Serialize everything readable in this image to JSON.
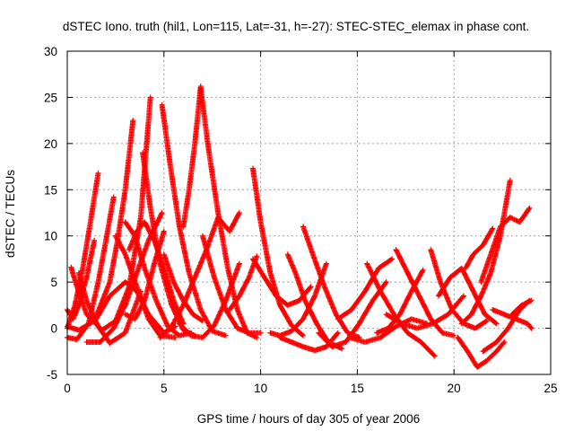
{
  "chart_data": {
    "type": "scatter",
    "title": "dSTEC Iono. truth (hil1, Lon=115, Lat=-31, h=-27): STEC-STEC_elemax in phase cont.",
    "xlabel": "GPS time / hours of day 305 of year 2006",
    "ylabel": "dSTEC  / TECUs",
    "xlim": [
      0,
      25
    ],
    "ylim": [
      -5,
      30
    ],
    "xticks": [
      0,
      5,
      10,
      15,
      20,
      25
    ],
    "yticks": [
      -5,
      0,
      5,
      10,
      15,
      20,
      25,
      30
    ],
    "grid": true,
    "marker": "+",
    "color": "#ff0000",
    "series": [
      {
        "x": [
          0.0,
          0.4,
          0.8,
          1.2,
          1.6
        ],
        "y": [
          0.0,
          2.5,
          6.5,
          11.5,
          16.8
        ]
      },
      {
        "x": [
          0.0,
          0.6,
          1.4,
          2.2,
          2.6,
          3.0,
          3.4
        ],
        "y": [
          0.2,
          -0.2,
          0.8,
          5.0,
          9.5,
          15.0,
          22.5
        ]
      },
      {
        "x": [
          0.0,
          0.5,
          1.1,
          1.6,
          2.0,
          2.4
        ],
        "y": [
          -1.0,
          -1.2,
          0.5,
          5.0,
          9.5,
          14.2
        ]
      },
      {
        "x": [
          0.0,
          0.3,
          0.6,
          1.0,
          1.4
        ],
        "y": [
          2.0,
          1.0,
          2.5,
          5.5,
          9.5
        ]
      },
      {
        "x": [
          0.2,
          0.5,
          1.0,
          1.8,
          2.5,
          3.2,
          3.8,
          4.3
        ],
        "y": [
          6.6,
          4.5,
          1.5,
          -0.2,
          0.8,
          4.5,
          12.0,
          25.0
        ]
      },
      {
        "x": [
          0.6,
          1.0,
          1.6,
          2.2,
          3.0,
          3.8
        ],
        "y": [
          6.0,
          3.0,
          0.2,
          -1.6,
          -0.5,
          4.0
        ]
      },
      {
        "x": [
          1.0,
          1.7,
          2.4,
          3.0,
          3.6,
          4.2,
          4.9
        ],
        "y": [
          -1.5,
          -1.5,
          0.0,
          2.5,
          6.0,
          9.5,
          12.5
        ]
      },
      {
        "x": [
          1.5,
          2.2,
          3.0,
          3.6,
          4.2,
          5.0,
          5.6
        ],
        "y": [
          1.0,
          3.5,
          5.0,
          4.0,
          1.5,
          -0.5,
          0.2
        ]
      },
      {
        "x": [
          2.5,
          3.0,
          3.6,
          4.2,
          4.8,
          5.6
        ],
        "y": [
          10.0,
          8.0,
          4.5,
          1.0,
          -0.8,
          -1.0
        ]
      },
      {
        "x": [
          3.0,
          3.5,
          4.0,
          4.6,
          5.2,
          5.8,
          6.4
        ],
        "y": [
          11.5,
          10.0,
          6.5,
          3.0,
          0.2,
          -0.8,
          -0.5
        ]
      },
      {
        "x": [
          3.2,
          3.6,
          4.0,
          4.5,
          5.0,
          5.5,
          6.0
        ],
        "y": [
          8.5,
          10.5,
          11.5,
          9.5,
          6.5,
          3.0,
          0.5
        ]
      },
      {
        "x": [
          3.9,
          4.3,
          4.8,
          5.4,
          6.0,
          6.6
        ],
        "y": [
          19.0,
          13.0,
          7.0,
          2.5,
          -0.2,
          -0.8
        ]
      },
      {
        "x": [
          3.0,
          3.5,
          4.0,
          4.5,
          5.0
        ],
        "y": [
          1.5,
          1.0,
          3.0,
          7.0,
          10.5
        ]
      },
      {
        "x": [
          4.9,
          5.3,
          5.8,
          6.3,
          6.9,
          7.5,
          8.2
        ],
        "y": [
          24.2,
          18.0,
          11.0,
          6.0,
          2.0,
          -0.3,
          -0.8
        ]
      },
      {
        "x": [
          5.0,
          5.5,
          6.0,
          6.5,
          7.0
        ],
        "y": [
          8.0,
          5.0,
          3.0,
          1.5,
          0.8
        ]
      },
      {
        "x": [
          6.0,
          6.3,
          6.6,
          6.9
        ],
        "y": [
          11.0,
          15.0,
          20.0,
          26.2
        ]
      },
      {
        "x": [
          6.9,
          7.3,
          7.8,
          8.3,
          8.8,
          9.3,
          9.8
        ],
        "y": [
          26.0,
          19.5,
          12.5,
          6.5,
          2.0,
          -0.5,
          -1.0
        ]
      },
      {
        "x": [
          4.8,
          5.4,
          6.0,
          6.6,
          7.2,
          7.8,
          8.4,
          8.9
        ],
        "y": [
          -1.0,
          0.2,
          2.5,
          5.5,
          8.5,
          12.0,
          10.5,
          12.5
        ]
      },
      {
        "x": [
          5.8,
          6.4,
          7.0,
          7.6,
          8.2,
          8.9
        ],
        "y": [
          0.5,
          -0.8,
          -1.0,
          0.3,
          3.0,
          7.0
        ]
      },
      {
        "x": [
          7.0,
          7.6,
          8.2,
          8.8,
          9.4,
          10.0
        ],
        "y": [
          10.0,
          5.5,
          2.0,
          0.0,
          -0.5,
          -0.5
        ]
      },
      {
        "x": [
          8.4,
          8.9,
          9.4,
          9.8
        ],
        "y": [
          2.0,
          3.5,
          5.5,
          7.8
        ]
      },
      {
        "x": [
          9.6,
          10.0,
          10.5,
          11.0,
          11.6,
          12.2
        ],
        "y": [
          17.3,
          11.5,
          6.0,
          2.5,
          0.3,
          -0.8
        ]
      },
      {
        "x": [
          9.6,
          10.2,
          10.8,
          11.4,
          12.0,
          12.6
        ],
        "y": [
          7.5,
          5.5,
          3.5,
          2.5,
          3.0,
          4.5
        ]
      },
      {
        "x": [
          10.5,
          11.0,
          11.6,
          12.2,
          12.8,
          13.4
        ],
        "y": [
          -0.5,
          -0.8,
          -0.3,
          1.0,
          3.5,
          7.0
        ]
      },
      {
        "x": [
          11.4,
          11.8,
          12.3,
          12.9,
          13.5,
          14.2
        ],
        "y": [
          8.0,
          6.0,
          3.0,
          0.5,
          -1.5,
          -2.2
        ]
      },
      {
        "x": [
          12.2,
          12.7,
          13.3,
          13.9,
          14.5,
          15.1
        ],
        "y": [
          11.0,
          8.0,
          4.5,
          1.5,
          -0.5,
          -1.0
        ]
      },
      {
        "x": [
          11.0,
          11.6,
          12.2,
          12.8,
          13.4,
          14.0
        ],
        "y": [
          -1.0,
          -1.5,
          -2.0,
          -2.4,
          -2.0,
          -0.5
        ]
      },
      {
        "x": [
          13.0,
          13.7,
          14.4,
          15.1,
          15.8,
          16.5
        ],
        "y": [
          -0.5,
          -2.0,
          -1.5,
          0.5,
          3.0,
          5.0
        ]
      },
      {
        "x": [
          14.0,
          14.7,
          15.4,
          16.1,
          16.8
        ],
        "y": [
          1.0,
          2.0,
          4.0,
          6.5,
          7.5
        ]
      },
      {
        "x": [
          15.5,
          16.2,
          16.9,
          17.6,
          18.3,
          19.0
        ],
        "y": [
          7.0,
          4.0,
          1.5,
          -0.5,
          -1.5,
          -3.0
        ]
      },
      {
        "x": [
          14.6,
          15.4,
          16.2,
          17.0,
          17.8,
          18.6
        ],
        "y": [
          -1.0,
          -1.5,
          -1.0,
          0.2,
          1.0,
          0.5
        ]
      },
      {
        "x": [
          16.0,
          16.6,
          17.2,
          17.8,
          18.4
        ],
        "y": [
          -0.5,
          0.0,
          1.5,
          4.0,
          6.3
        ]
      },
      {
        "x": [
          17.0,
          17.6,
          18.2,
          18.8,
          19.4,
          20.0
        ],
        "y": [
          8.5,
          6.0,
          3.5,
          1.0,
          -0.5,
          -0.8
        ]
      },
      {
        "x": [
          16.5,
          17.3,
          18.1,
          18.9,
          19.7,
          20.5
        ],
        "y": [
          1.5,
          0.5,
          0.0,
          0.5,
          1.5,
          3.5
        ]
      },
      {
        "x": [
          18.8,
          19.3,
          19.9,
          20.5,
          21.1,
          21.7
        ],
        "y": [
          8.5,
          5.0,
          2.0,
          0.5,
          0.0,
          0.8
        ]
      },
      {
        "x": [
          19.2,
          19.8,
          20.4,
          21.0,
          21.6,
          22.2
        ],
        "y": [
          3.5,
          5.5,
          6.5,
          4.0,
          1.5,
          0.5
        ]
      },
      {
        "x": [
          20.2,
          20.7,
          21.2,
          21.7,
          22.2,
          22.6
        ],
        "y": [
          -1.0,
          -2.5,
          -4.2,
          -3.5,
          -2.5,
          -1.5
        ]
      },
      {
        "x": [
          20.4,
          20.9,
          21.4,
          21.9,
          22.4,
          22.9
        ],
        "y": [
          0.5,
          1.5,
          3.5,
          6.0,
          10.0,
          16.0
        ]
      },
      {
        "x": [
          20.6,
          21.0,
          21.5,
          22.0
        ],
        "y": [
          6.5,
          8.0,
          9.0,
          10.8
        ]
      },
      {
        "x": [
          21.4,
          21.9,
          22.4,
          22.9,
          23.4,
          23.9
        ],
        "y": [
          5.0,
          8.0,
          11.0,
          12.0,
          11.5,
          13.0
        ]
      },
      {
        "x": [
          21.5,
          22.2,
          22.8,
          23.4,
          23.9
        ],
        "y": [
          -2.5,
          -1.5,
          0.0,
          2.0,
          3.0
        ]
      },
      {
        "x": [
          22.0,
          22.6,
          23.2,
          23.8,
          24.0
        ],
        "y": [
          2.0,
          1.5,
          1.0,
          0.5,
          0.0
        ]
      },
      {
        "x": [
          23.0,
          23.5,
          24.0
        ],
        "y": [
          1.5,
          2.5,
          3.0
        ]
      }
    ]
  }
}
